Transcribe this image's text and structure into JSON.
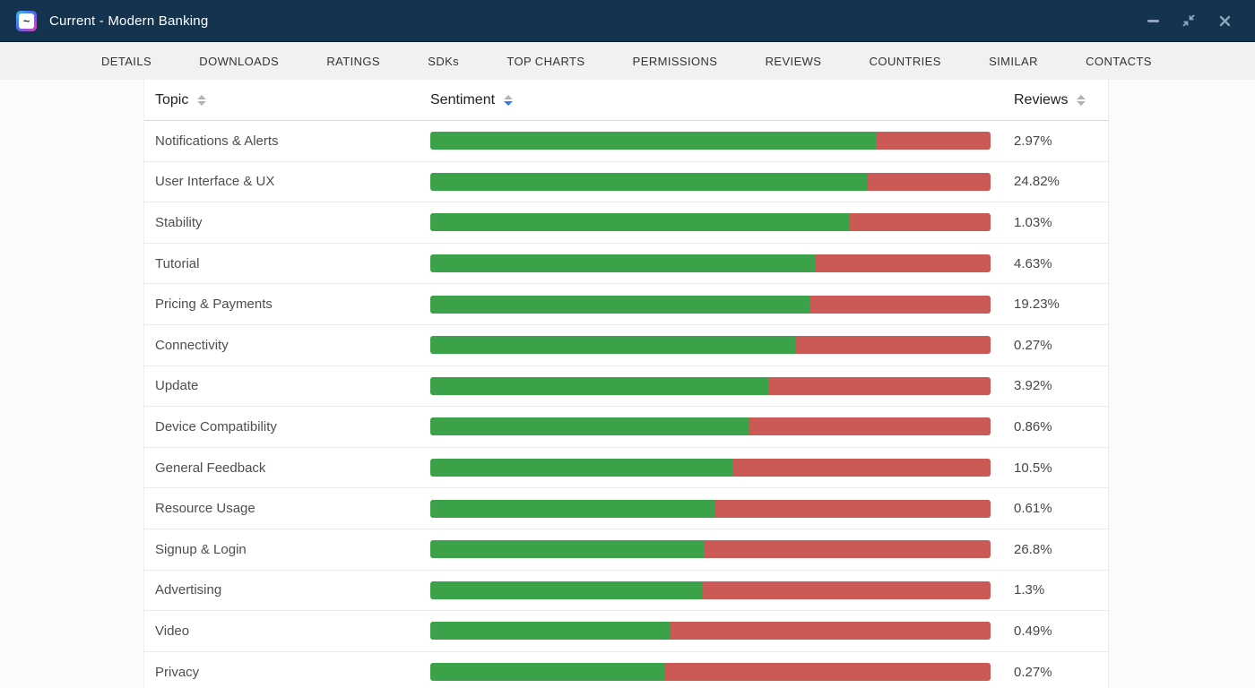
{
  "window": {
    "title": "Current - Modern Banking",
    "app_icon_glyph": "~",
    "controls": {
      "minimize": "minimize",
      "restore": "restore-down",
      "close": "close"
    }
  },
  "tabs": [
    "DETAILS",
    "DOWNLOADS",
    "RATINGS",
    "SDKs",
    "TOP CHARTS",
    "PERMISSIONS",
    "REVIEWS",
    "COUNTRIES",
    "SIMILAR",
    "CONTACTS"
  ],
  "table": {
    "columns": [
      {
        "label": "Topic",
        "sort": "none"
      },
      {
        "label": "Sentiment",
        "sort": "desc"
      },
      {
        "label": "Reviews",
        "sort": "none"
      }
    ],
    "rows": [
      {
        "topic": "Notifications & Alerts",
        "positive_pct": 79.7,
        "negative_pct": 20.3,
        "reviews": "2.97%"
      },
      {
        "topic": "User Interface & UX",
        "positive_pct": 78.1,
        "negative_pct": 21.9,
        "reviews": "24.82%"
      },
      {
        "topic": "Stability",
        "positive_pct": 74.9,
        "negative_pct": 25.1,
        "reviews": "1.03%"
      },
      {
        "topic": "Tutorial",
        "positive_pct": 68.8,
        "negative_pct": 31.2,
        "reviews": "4.63%"
      },
      {
        "topic": "Pricing & Payments",
        "positive_pct": 67.7,
        "negative_pct": 32.3,
        "reviews": "19.23%"
      },
      {
        "topic": "Connectivity",
        "positive_pct": 65.1,
        "negative_pct": 34.9,
        "reviews": "0.27%"
      },
      {
        "topic": "Update",
        "positive_pct": 60.3,
        "negative_pct": 39.7,
        "reviews": "3.92%"
      },
      {
        "topic": "Device Compatibility",
        "positive_pct": 56.8,
        "negative_pct": 43.2,
        "reviews": "0.86%"
      },
      {
        "topic": "General Feedback",
        "positive_pct": 53.9,
        "negative_pct": 46.1,
        "reviews": "10.5%"
      },
      {
        "topic": "Resource Usage",
        "positive_pct": 50.9,
        "negative_pct": 49.1,
        "reviews": "0.61%"
      },
      {
        "topic": "Signup & Login",
        "positive_pct": 49.0,
        "negative_pct": 51.0,
        "reviews": "26.8%"
      },
      {
        "topic": "Advertising",
        "positive_pct": 48.6,
        "negative_pct": 51.4,
        "reviews": "1.3%"
      },
      {
        "topic": "Video",
        "positive_pct": 42.9,
        "negative_pct": 57.1,
        "reviews": "0.49%"
      },
      {
        "topic": "Privacy",
        "positive_pct": 41.9,
        "negative_pct": 58.1,
        "reviews": "0.27%"
      }
    ]
  },
  "colors": {
    "positive": "#3ba24a",
    "negative": "#cb5a57",
    "sort_active": "#2f80e0",
    "titlebar_bg": "#14334f"
  }
}
